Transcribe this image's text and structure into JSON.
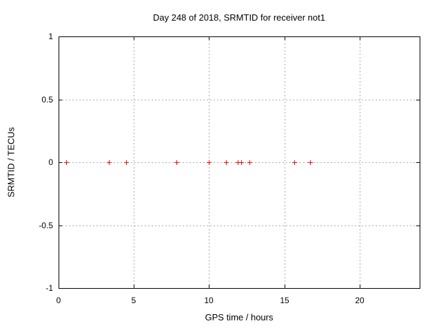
{
  "chart_data": {
    "type": "scatter",
    "title": "Day 248 of 2018, SRMTID for receiver not1",
    "xlabel": "GPS time / hours",
    "ylabel": "SRMTID / TECUs",
    "xlim": [
      0,
      24
    ],
    "ylim": [
      -1,
      1
    ],
    "xticks": [
      0,
      5,
      10,
      15,
      20
    ],
    "yticks": [
      -1,
      -0.5,
      0,
      0.5,
      1
    ],
    "grid": true,
    "legend": false,
    "series": [
      {
        "name": "SRMTID",
        "marker": "plus",
        "color": "#ff0000",
        "points": [
          {
            "x": 0.5,
            "y": 0
          },
          {
            "x": 3.34,
            "y": 0
          },
          {
            "x": 4.49,
            "y": 0
          },
          {
            "x": 7.83,
            "y": 0
          },
          {
            "x": 10.0,
            "y": 0
          },
          {
            "x": 11.13,
            "y": 0
          },
          {
            "x": 11.91,
            "y": 0
          },
          {
            "x": 12.14,
            "y": 0
          },
          {
            "x": 12.69,
            "y": 0
          },
          {
            "x": 15.67,
            "y": 0
          },
          {
            "x": 16.72,
            "y": 0
          }
        ]
      }
    ],
    "colors": {
      "marker": "#ff0000",
      "grid": "#aaaaaa",
      "axis": "#000000",
      "background": "#ffffff"
    }
  }
}
